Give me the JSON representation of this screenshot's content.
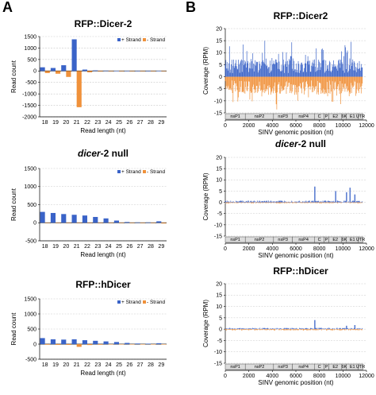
{
  "panel_labels": [
    "A",
    "B"
  ],
  "colors": {
    "plus_strand": "#3a63c8",
    "minus_strand": "#f0913a",
    "grid": "#c9c9c9",
    "axis": "#000000",
    "genome_box": "#dcdcdc"
  },
  "genome_labels": [
    "nsP1",
    "nsP2",
    "nsP3",
    "nsP4",
    "C",
    "P",
    "E2",
    "6K",
    "E1",
    "UTR"
  ],
  "chart_data": [
    {
      "type": "bar",
      "title": "RFP::Dicer-2",
      "xlabel": "Read length (nt)",
      "ylabel": "Read count",
      "categories": [
        "18",
        "19",
        "20",
        "21",
        "22",
        "23",
        "24",
        "25",
        "26",
        "27",
        "28",
        "29"
      ],
      "yticks": [
        "1500",
        "1000",
        "500",
        "0",
        "-500",
        "-1000",
        "-1500",
        "-2000"
      ],
      "ylim": [
        -2000,
        1500
      ],
      "legend": [
        "+ Strand",
        "- Strand"
      ],
      "legend_position": "top-right",
      "grid": true,
      "series": [
        {
          "name": "+ Strand",
          "values": [
            160,
            130,
            250,
            1380,
            60,
            25,
            15,
            10,
            8,
            6,
            5,
            10
          ]
        },
        {
          "name": "- Strand",
          "values": [
            -90,
            -120,
            -260,
            -1580,
            -60,
            -25,
            -15,
            -10,
            -8,
            -6,
            -5,
            -10
          ]
        }
      ]
    },
    {
      "type": "bar",
      "title": "dicer-2 null",
      "title_italic": "dicer",
      "title_rest": "-2  null",
      "xlabel": "Read length (nt)",
      "ylabel": "Read count",
      "categories": [
        "18",
        "19",
        "20",
        "21",
        "22",
        "23",
        "24",
        "25",
        "26",
        "27",
        "28",
        "29"
      ],
      "yticks": [
        "1500",
        "1000",
        "500",
        "0",
        "-500"
      ],
      "ylim": [
        -500,
        1500
      ],
      "legend": [
        "+ Strand",
        "- Strand"
      ],
      "legend_position": "top-right",
      "grid": true,
      "series": [
        {
          "name": "+ Strand",
          "values": [
            300,
            270,
            240,
            220,
            200,
            160,
            120,
            60,
            20,
            10,
            10,
            40
          ]
        },
        {
          "name": "- Strand",
          "values": [
            -10,
            -10,
            -10,
            -10,
            -10,
            -8,
            -6,
            -5,
            -4,
            -3,
            -3,
            -20
          ]
        }
      ]
    },
    {
      "type": "bar",
      "title": "RFP::hDicer",
      "xlabel": "Read length (nt)",
      "ylabel": "Read count",
      "categories": [
        "18",
        "19",
        "20",
        "21",
        "22",
        "23",
        "24",
        "25",
        "26",
        "27",
        "28",
        "29"
      ],
      "yticks": [
        "1500",
        "1000",
        "500",
        "0",
        "-500"
      ],
      "ylim": [
        -500,
        1500
      ],
      "legend": [
        "+ Strand",
        "- Strand"
      ],
      "legend_position": "top-right",
      "grid": true,
      "series": [
        {
          "name": "+ Strand",
          "values": [
            200,
            160,
            150,
            160,
            130,
            110,
            90,
            70,
            40,
            20,
            15,
            30
          ]
        },
        {
          "name": "- Strand",
          "values": [
            -20,
            -25,
            -25,
            -90,
            -30,
            -20,
            -10,
            -8,
            -5,
            -4,
            -3,
            -10
          ]
        }
      ]
    },
    {
      "type": "area",
      "title": "RFP::Dicer2",
      "xlabel": "SINV genomic position (nt)",
      "ylabel": "Coverage (RPM)",
      "xticks": [
        "0",
        "2000",
        "4000",
        "6000",
        "8000",
        "10000",
        "12000"
      ],
      "yticks": [
        "20",
        "15",
        "10",
        "5",
        "0",
        "-5",
        "-10",
        "-15"
      ],
      "xlim": [
        0,
        12000
      ],
      "ylim": [
        -15,
        20
      ],
      "profile": "high",
      "grid": true,
      "series": [
        {
          "name": "+ strand",
          "mean": 4,
          "spread": 7
        },
        {
          "name": "- strand",
          "mean": -4,
          "spread": 7
        }
      ]
    },
    {
      "type": "area",
      "title": "dicer-2 null",
      "title_italic": "dicer",
      "title_rest": "-2  null",
      "xlabel": "SINV genomic position (nt)",
      "ylabel": "Coverage (RPM)",
      "xticks": [
        "0",
        "2000",
        "4000",
        "6000",
        "8000",
        "10000",
        "12000"
      ],
      "yticks": [
        "20",
        "15",
        "10",
        "5",
        "0",
        "-5",
        "-10",
        "-15"
      ],
      "xlim": [
        0,
        12000
      ],
      "ylim": [
        -15,
        20
      ],
      "profile": "low",
      "grid": true,
      "peaks": [
        [
          7600,
          7
        ],
        [
          9400,
          5
        ],
        [
          10300,
          4.5
        ],
        [
          10600,
          6.5
        ],
        [
          11000,
          3.5
        ]
      ],
      "series": [
        {
          "name": "+ strand",
          "mean": 0.5,
          "spread": 0.8
        },
        {
          "name": "- strand",
          "mean": -0.3,
          "spread": 0.5
        }
      ]
    },
    {
      "type": "area",
      "title": "RFP::hDicer",
      "xlabel": "SINV genomic position (nt)",
      "ylabel": "Coverage (RPM)",
      "xticks": [
        "0",
        "2000",
        "4000",
        "6000",
        "8000",
        "10000",
        "12000"
      ],
      "yticks": [
        "20",
        "15",
        "10",
        "5",
        "0",
        "-5",
        "-10",
        "-15"
      ],
      "xlim": [
        0,
        12000
      ],
      "ylim": [
        -15,
        20
      ],
      "profile": "low",
      "grid": true,
      "peaks": [
        [
          7600,
          4
        ],
        [
          10300,
          1.5
        ],
        [
          11000,
          1.8
        ]
      ],
      "series": [
        {
          "name": "+ strand",
          "mean": 0.3,
          "spread": 0.6
        },
        {
          "name": "- strand",
          "mean": -0.3,
          "spread": 0.6
        }
      ]
    }
  ]
}
